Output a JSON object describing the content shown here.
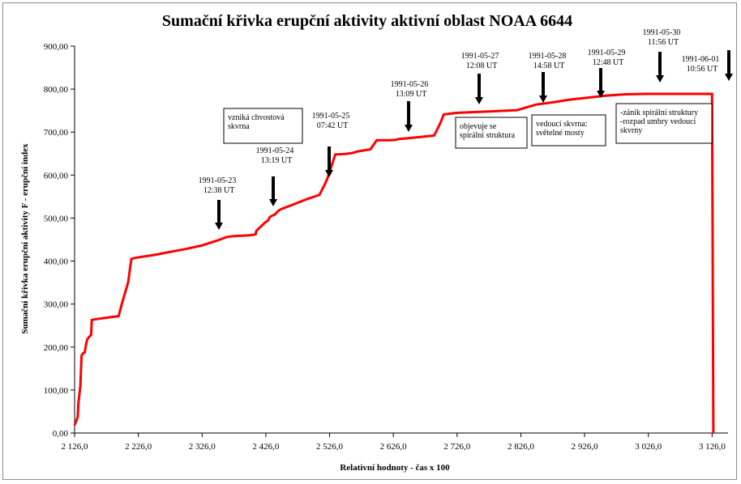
{
  "chart_data": {
    "type": "line",
    "title": "Sumační křivka erupční aktivity aktivní oblast NOAA 6644",
    "xlabel": "Relativní hodnoty - čas x 100",
    "ylabel": "Sumační křivka erupční aktivity F - erupční index",
    "xlim": [
      2126,
      3151
    ],
    "ylim": [
      0,
      900
    ],
    "x_ticks": [
      2126,
      2226,
      2326,
      2426,
      2526,
      2626,
      2726,
      2826,
      2926,
      3026,
      3126
    ],
    "x_tick_labels": [
      "2 126,0",
      "2 226,0",
      "2 326,0",
      "2 426,0",
      "2 526,0",
      "2 626,0",
      "2 726,0",
      "2 826,0",
      "2 926,0",
      "3 026,0",
      "3 126,0"
    ],
    "y_ticks": [
      0,
      100,
      200,
      300,
      400,
      500,
      600,
      700,
      800,
      900
    ],
    "y_tick_labels": [
      "0,00",
      "100,00",
      "200,00",
      "300,00",
      "400,00",
      "500,00",
      "600,00",
      "700,00",
      "800,00",
      "900,00"
    ],
    "grid": false,
    "line_color": "#ff0000",
    "series": [
      {
        "x": [
          2126,
          2129,
          2131,
          2132,
          2134,
          2135,
          2137,
          2138,
          2140,
          2142,
          2144,
          2146,
          2148,
          2149,
          2152,
          2153,
          2156,
          2160,
          2165,
          2170,
          2175,
          2180,
          2185,
          2190,
          2195,
          2200,
          2205,
          2210,
          2215,
          2220,
          2223,
          2250,
          2275,
          2300,
          2325,
          2350,
          2365,
          2375,
          2400,
          2410,
          2411,
          2415,
          2420,
          2425,
          2430,
          2432,
          2436,
          2440,
          2445,
          2450,
          2470,
          2490,
          2510,
          2519,
          2523,
          2535,
          2550,
          2555,
          2561,
          2563,
          2570,
          2590,
          2600,
          2620,
          2630,
          2632,
          2634,
          2650,
          2670,
          2690,
          2700,
          2705,
          2712,
          2716,
          2720,
          2730,
          2760,
          2790,
          2820,
          2850,
          2880,
          2900,
          2930,
          2960,
          2990,
          3020,
          3060,
          3090,
          3126,
          3128
        ],
        "values": [
          18,
          30,
          38,
          70,
          95,
          110,
          180,
          183,
          186,
          188,
          207,
          218,
          222,
          224,
          228,
          263,
          264,
          265,
          266,
          267,
          268,
          269,
          270,
          271,
          272,
          300,
          325,
          351,
          405,
          407,
          408,
          414,
          421,
          428,
          436,
          448,
          456,
          458,
          460,
          462,
          470,
          476,
          483,
          490,
          495,
          502,
          506,
          508,
          516,
          521,
          532,
          544,
          554,
          580,
          594,
          648,
          649,
          650,
          651,
          652,
          655,
          660,
          681,
          681,
          682,
          683,
          684,
          686,
          689,
          692,
          722,
          741,
          742,
          743,
          744,
          745,
          747,
          749,
          751,
          764,
          770,
          775,
          780,
          785,
          788,
          789,
          789,
          789,
          789,
          0
        ]
      }
    ],
    "annotations": {
      "dates": [
        {
          "date": "1991-05-23",
          "time": "12:38 UT"
        },
        {
          "date": "1991-05-24",
          "time": "13:19 UT"
        },
        {
          "date": "1991-05-25",
          "time": "07:42 UT"
        },
        {
          "date": "1991-05-26",
          "time": "13:09 UT"
        },
        {
          "date": "1991-05-27",
          "time": "12:08 UT"
        },
        {
          "date": "1991-05-28",
          "time": "14:58 UT"
        },
        {
          "date": "1991-05-29",
          "time": "12:48 UT"
        },
        {
          "date": "1991-05-30",
          "time": "11:56 UT"
        },
        {
          "date": "1991-06-01",
          "time": "10:56 UT"
        }
      ],
      "boxes": [
        {
          "lines": [
            "vzniká chvostová",
            "skvrna"
          ]
        },
        {
          "lines": [
            "objevuje se",
            "spirální struktura"
          ]
        },
        {
          "lines": [
            "vedoucí skvrna:",
            "světelné mosty"
          ]
        },
        {
          "lines": [
            "-zánik spirální struktury",
            "-rozpad umbry vedoucí",
            "skvrny"
          ]
        }
      ]
    }
  }
}
